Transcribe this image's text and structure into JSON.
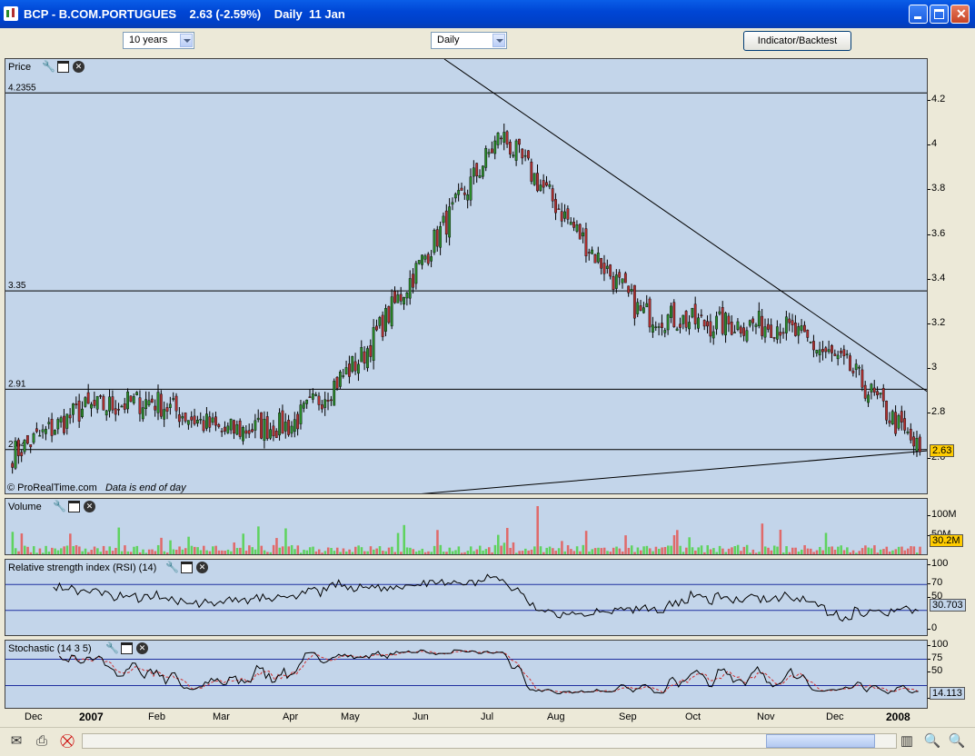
{
  "window": {
    "title": "BCP - B.COM.PORTUGUES    2.63 (-2.59%)    Daily  11 Jan"
  },
  "toolbar": {
    "period": "10 years",
    "interval": "Daily",
    "indicator_button": "Indicator/Backtest"
  },
  "price_panel": {
    "title": "Price",
    "watermark": "© ProRealTime.com",
    "note": "Data is end of day",
    "hlines": [
      {
        "value": 4.2355,
        "label": "4.2355"
      },
      {
        "value": 3.35,
        "label": "3.35"
      },
      {
        "value": 2.91,
        "label": "2.91"
      },
      {
        "value": 2.64,
        "label": "2.64"
      }
    ],
    "axis_ticks": [
      "4.2",
      "4",
      "3.8",
      "3.6",
      "3.4",
      "3.2",
      "3",
      "2.8",
      "2.6"
    ],
    "last_value": "2.63",
    "last_value_color": "#ffcc00"
  },
  "volume_panel": {
    "title": "Volume",
    "axis_ticks": [
      "100M",
      "50M"
    ],
    "last_value": "30.2M",
    "last_value_color": "#ffcc00"
  },
  "rsi_panel": {
    "title": "Relative strength index (RSI) (14)",
    "axis_ticks": [
      "100",
      "70",
      "50",
      "0"
    ],
    "last_value": "30.703",
    "last_value_color": "#c3d5ea"
  },
  "stoch_panel": {
    "title": "Stochastic (14 3 5)",
    "axis_ticks": [
      "100",
      "75",
      "50",
      "0"
    ],
    "last_value": "14.113",
    "last_value_color": "#c3d5ea"
  },
  "x_axis": {
    "labels": [
      "Dec",
      "2007",
      "Feb",
      "Mar",
      "Apr",
      "May",
      "Jun",
      "Jul",
      "Aug",
      "Sep",
      "Oct",
      "Nov",
      "Dec",
      "2008"
    ]
  },
  "colors": {
    "up": "#2a8a2a",
    "down": "#b03030",
    "vol_up": "#5fd35f",
    "vol_down": "#e06a6a",
    "panel_bg": "#c3d5ea",
    "titlebar": "#0046d5"
  },
  "chart_data": {
    "type": "line",
    "title": "BCP - B.COM.PORTUGUES",
    "approx_close_by_month": {
      "x": [
        "Dec",
        "2007",
        "Feb",
        "Mar",
        "Apr",
        "May",
        "Jun",
        "Jul",
        "Aug",
        "Sep",
        "Oct",
        "Nov",
        "Dec",
        "2008"
      ],
      "y": [
        2.62,
        2.82,
        2.86,
        2.72,
        2.75,
        3.05,
        3.55,
        4.05,
        3.65,
        3.25,
        3.2,
        3.2,
        3.0,
        2.63
      ]
    },
    "ylim": [
      2.5,
      4.35
    ]
  }
}
